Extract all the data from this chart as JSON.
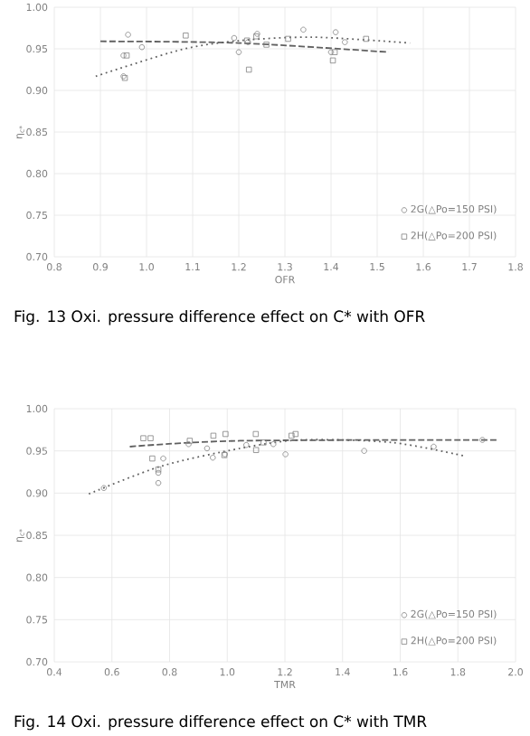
{
  "chart_data": [
    {
      "type": "scatter",
      "title": "Fig. 13 Oxi. pressure difference effect on C* with OFR",
      "xlabel": "OFR",
      "ylabel": "η$_{c*}$",
      "xlim": [
        0.8,
        1.8
      ],
      "ylim": [
        0.7,
        1.0
      ],
      "xticks": [
        {
          "value": 0.8,
          "label": "0.8"
        },
        {
          "value": 0.9,
          "label": "0.9"
        },
        {
          "value": 1.0,
          "label": "1.0"
        },
        {
          "value": 1.1,
          "label": "1.1"
        },
        {
          "value": 1.2,
          "label": "1.2"
        },
        {
          "value": 1.3,
          "label": "1.3"
        },
        {
          "value": 1.4,
          "label": "1.4"
        },
        {
          "value": 1.5,
          "label": "1.5"
        },
        {
          "value": 1.6,
          "label": "1.6"
        },
        {
          "value": 1.7,
          "label": "1.7"
        },
        {
          "value": 1.8,
          "label": "1.8"
        }
      ],
      "yticks": [
        {
          "value": 0.7,
          "label": "0.70"
        },
        {
          "value": 0.75,
          "label": "0.75"
        },
        {
          "value": 0.8,
          "label": "0.80"
        },
        {
          "value": 0.85,
          "label": "0.85"
        },
        {
          "value": 0.9,
          "label": "0.90"
        },
        {
          "value": 0.95,
          "label": "0.95"
        },
        {
          "value": 1.0,
          "label": "1.00"
        }
      ],
      "grid": true,
      "legend": "bottom right",
      "series": [
        {
          "name": "2G(△Po=150 PSI)",
          "color": "#808080",
          "marker": "circle",
          "x": [
            0.95,
            0.96,
            0.99,
            0.95,
            1.19,
            1.2,
            1.22,
            1.24,
            1.34,
            1.41,
            1.43,
            1.4
          ],
          "values": [
            0.942,
            0.967,
            0.952,
            0.917,
            0.963,
            0.946,
            0.958,
            0.968,
            0.973,
            0.97,
            0.958,
            0.946
          ]
        },
        {
          "name": "2H(△Po=200 PSI)",
          "color": "#808080",
          "marker": "square",
          "x": [
            1.085,
            0.957,
            0.953,
            1.222,
            1.218,
            1.238,
            1.26,
            1.307,
            1.404,
            1.408,
            1.476
          ],
          "values": [
            0.966,
            0.942,
            0.915,
            0.925,
            0.96,
            0.965,
            0.955,
            0.962,
            0.936,
            0.946,
            0.962
          ]
        },
        {
          "type": "line",
          "color": "#606060",
          "marker": "none",
          "line_style": "dotted",
          "x": [
            0.89,
            1.075,
            1.205,
            1.362,
            1.571
          ],
          "values": [
            0.917,
            0.949,
            0.96,
            0.964,
            0.957
          ]
        },
        {
          "type": "line",
          "color": "#606060",
          "marker": "none",
          "line_style": "dashed",
          "x": [
            0.9,
            1.2,
            1.525
          ],
          "values": [
            0.959,
            0.957,
            0.946
          ]
        }
      ]
    },
    {
      "type": "scatter",
      "title": "Fig. 14 Oxi. pressure difference effect on C* with TMR",
      "xlabel": "TMR",
      "ylabel": "η$_{c*}$",
      "xlim": [
        0.4,
        2.0
      ],
      "ylim": [
        0.7,
        1.0
      ],
      "xticks": [
        {
          "value": 0.4,
          "label": "0.4"
        },
        {
          "value": 0.6,
          "label": "0.6"
        },
        {
          "value": 0.8,
          "label": "0.8"
        },
        {
          "value": 1.0,
          "label": "1.0"
        },
        {
          "value": 1.2,
          "label": "1.2"
        },
        {
          "value": 1.4,
          "label": "1.4"
        },
        {
          "value": 1.6,
          "label": "1.6"
        },
        {
          "value": 1.8,
          "label": "1.8"
        },
        {
          "value": 2.0,
          "label": "2.0"
        }
      ],
      "yticks": [
        {
          "value": 0.7,
          "label": "0.70"
        },
        {
          "value": 0.75,
          "label": "0.75"
        },
        {
          "value": 0.8,
          "label": "0.80"
        },
        {
          "value": 0.85,
          "label": "0.85"
        },
        {
          "value": 0.9,
          "label": "0.90"
        },
        {
          "value": 0.95,
          "label": "0.95"
        },
        {
          "value": 1.0,
          "label": "1.00"
        }
      ],
      "grid": true,
      "legend": "bottom right",
      "series": [
        {
          "name": "2G(△Po=150 PSI)",
          "color": "#808080",
          "marker": "circle",
          "x": [
            0.572,
            0.761,
            0.761,
            0.778,
            0.95,
            0.992,
            1.066,
            1.16,
            1.202,
            1.475,
            1.716,
            1.885,
            0.93,
            0.866
          ],
          "values": [
            0.906,
            0.924,
            0.912,
            0.941,
            0.942,
            0.946,
            0.957,
            0.958,
            0.946,
            0.95,
            0.955,
            0.963,
            0.953,
            0.958
          ]
        },
        {
          "name": "2H(△Po=200 PSI)",
          "color": "#808080",
          "marker": "square",
          "x": [
            0.709,
            0.734,
            0.74,
            0.761,
            0.87,
            0.952,
            0.994,
            0.99,
            1.099,
            1.1,
            1.223,
            1.237,
            1.126
          ],
          "values": [
            0.965,
            0.965,
            0.941,
            0.928,
            0.962,
            0.968,
            0.97,
            0.945,
            0.97,
            0.951,
            0.968,
            0.97,
            0.96
          ]
        },
        {
          "type": "line",
          "color": "#606060",
          "marker": "none",
          "line_style": "dotted",
          "x": [
            0.52,
            0.772,
            1.045,
            1.255,
            1.57,
            1.822
          ],
          "values": [
            0.899,
            0.932,
            0.953,
            0.963,
            0.96,
            0.944
          ]
        },
        {
          "type": "line",
          "color": "#606060",
          "marker": "none",
          "line_style": "dashed",
          "x": [
            0.662,
            1.045,
            1.937
          ],
          "values": [
            0.955,
            0.962,
            0.963
          ]
        }
      ]
    }
  ]
}
